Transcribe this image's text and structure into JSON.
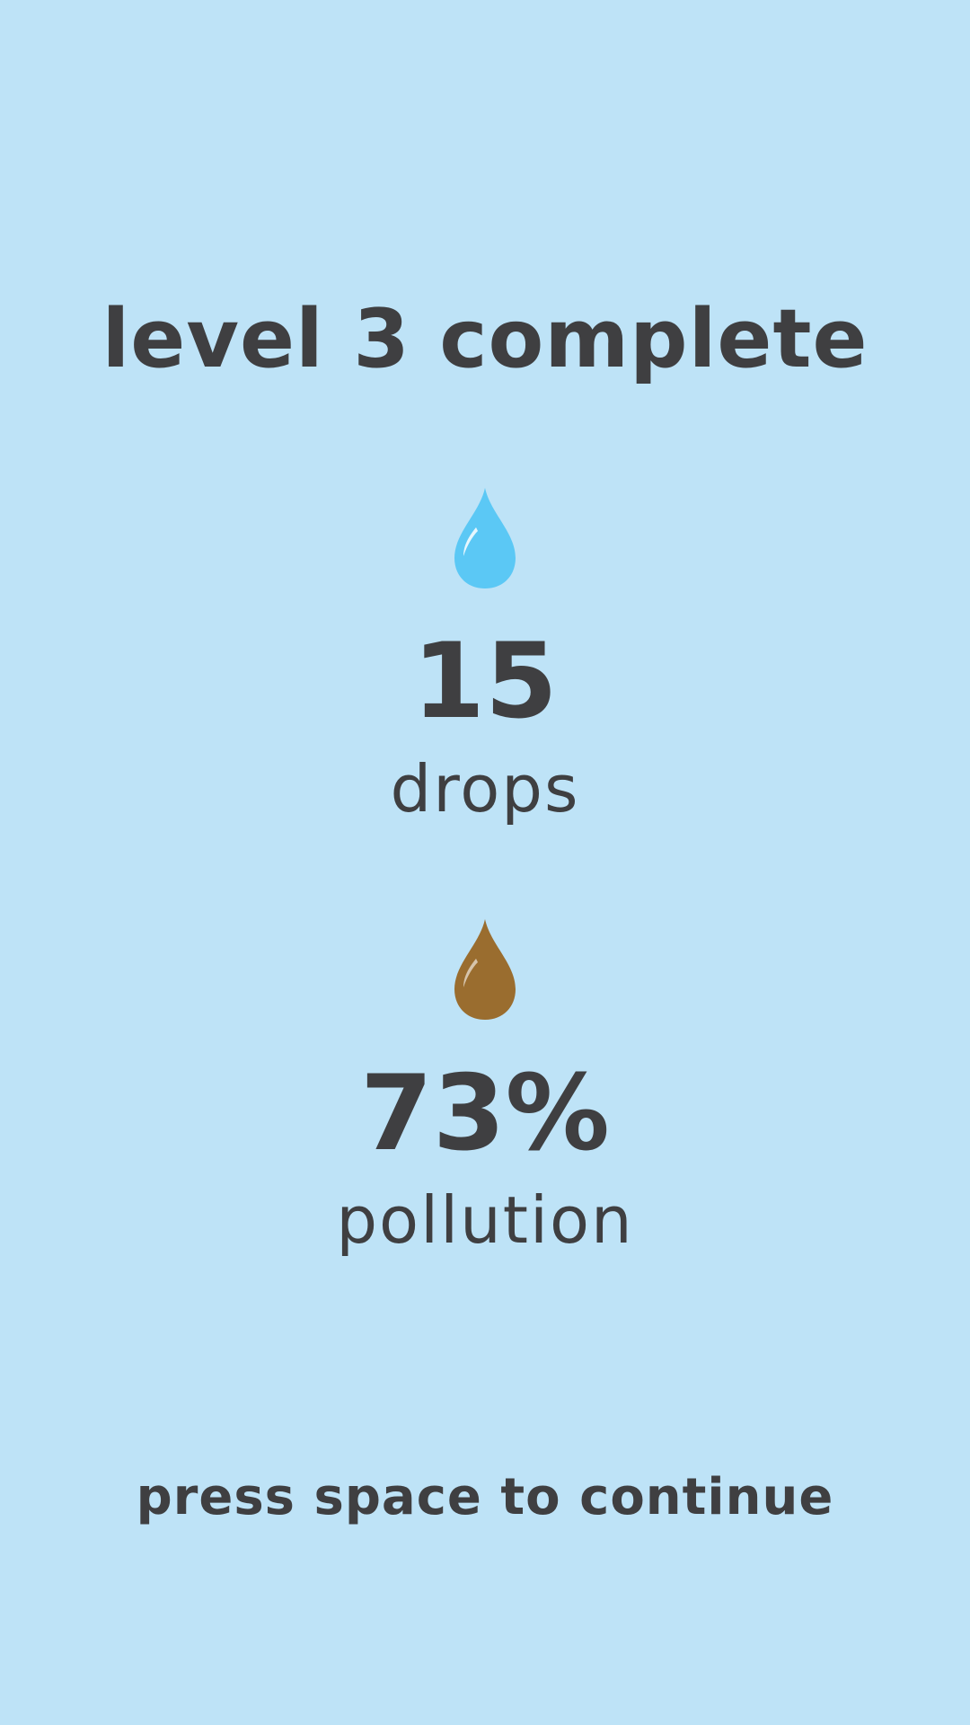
{
  "header": {
    "title": "level 3 complete"
  },
  "stats": {
    "drops": {
      "icon": "water-drop-icon",
      "icon_color": "#5bc8f5",
      "value": "15",
      "label": "drops"
    },
    "pollution": {
      "icon": "pollution-drop-icon",
      "icon_color": "#9a6d2f",
      "value": "73%",
      "label": "pollution"
    }
  },
  "footer": {
    "prompt": "press space to continue"
  },
  "colors": {
    "background": "#bee3f7",
    "text": "#3f3f41"
  }
}
